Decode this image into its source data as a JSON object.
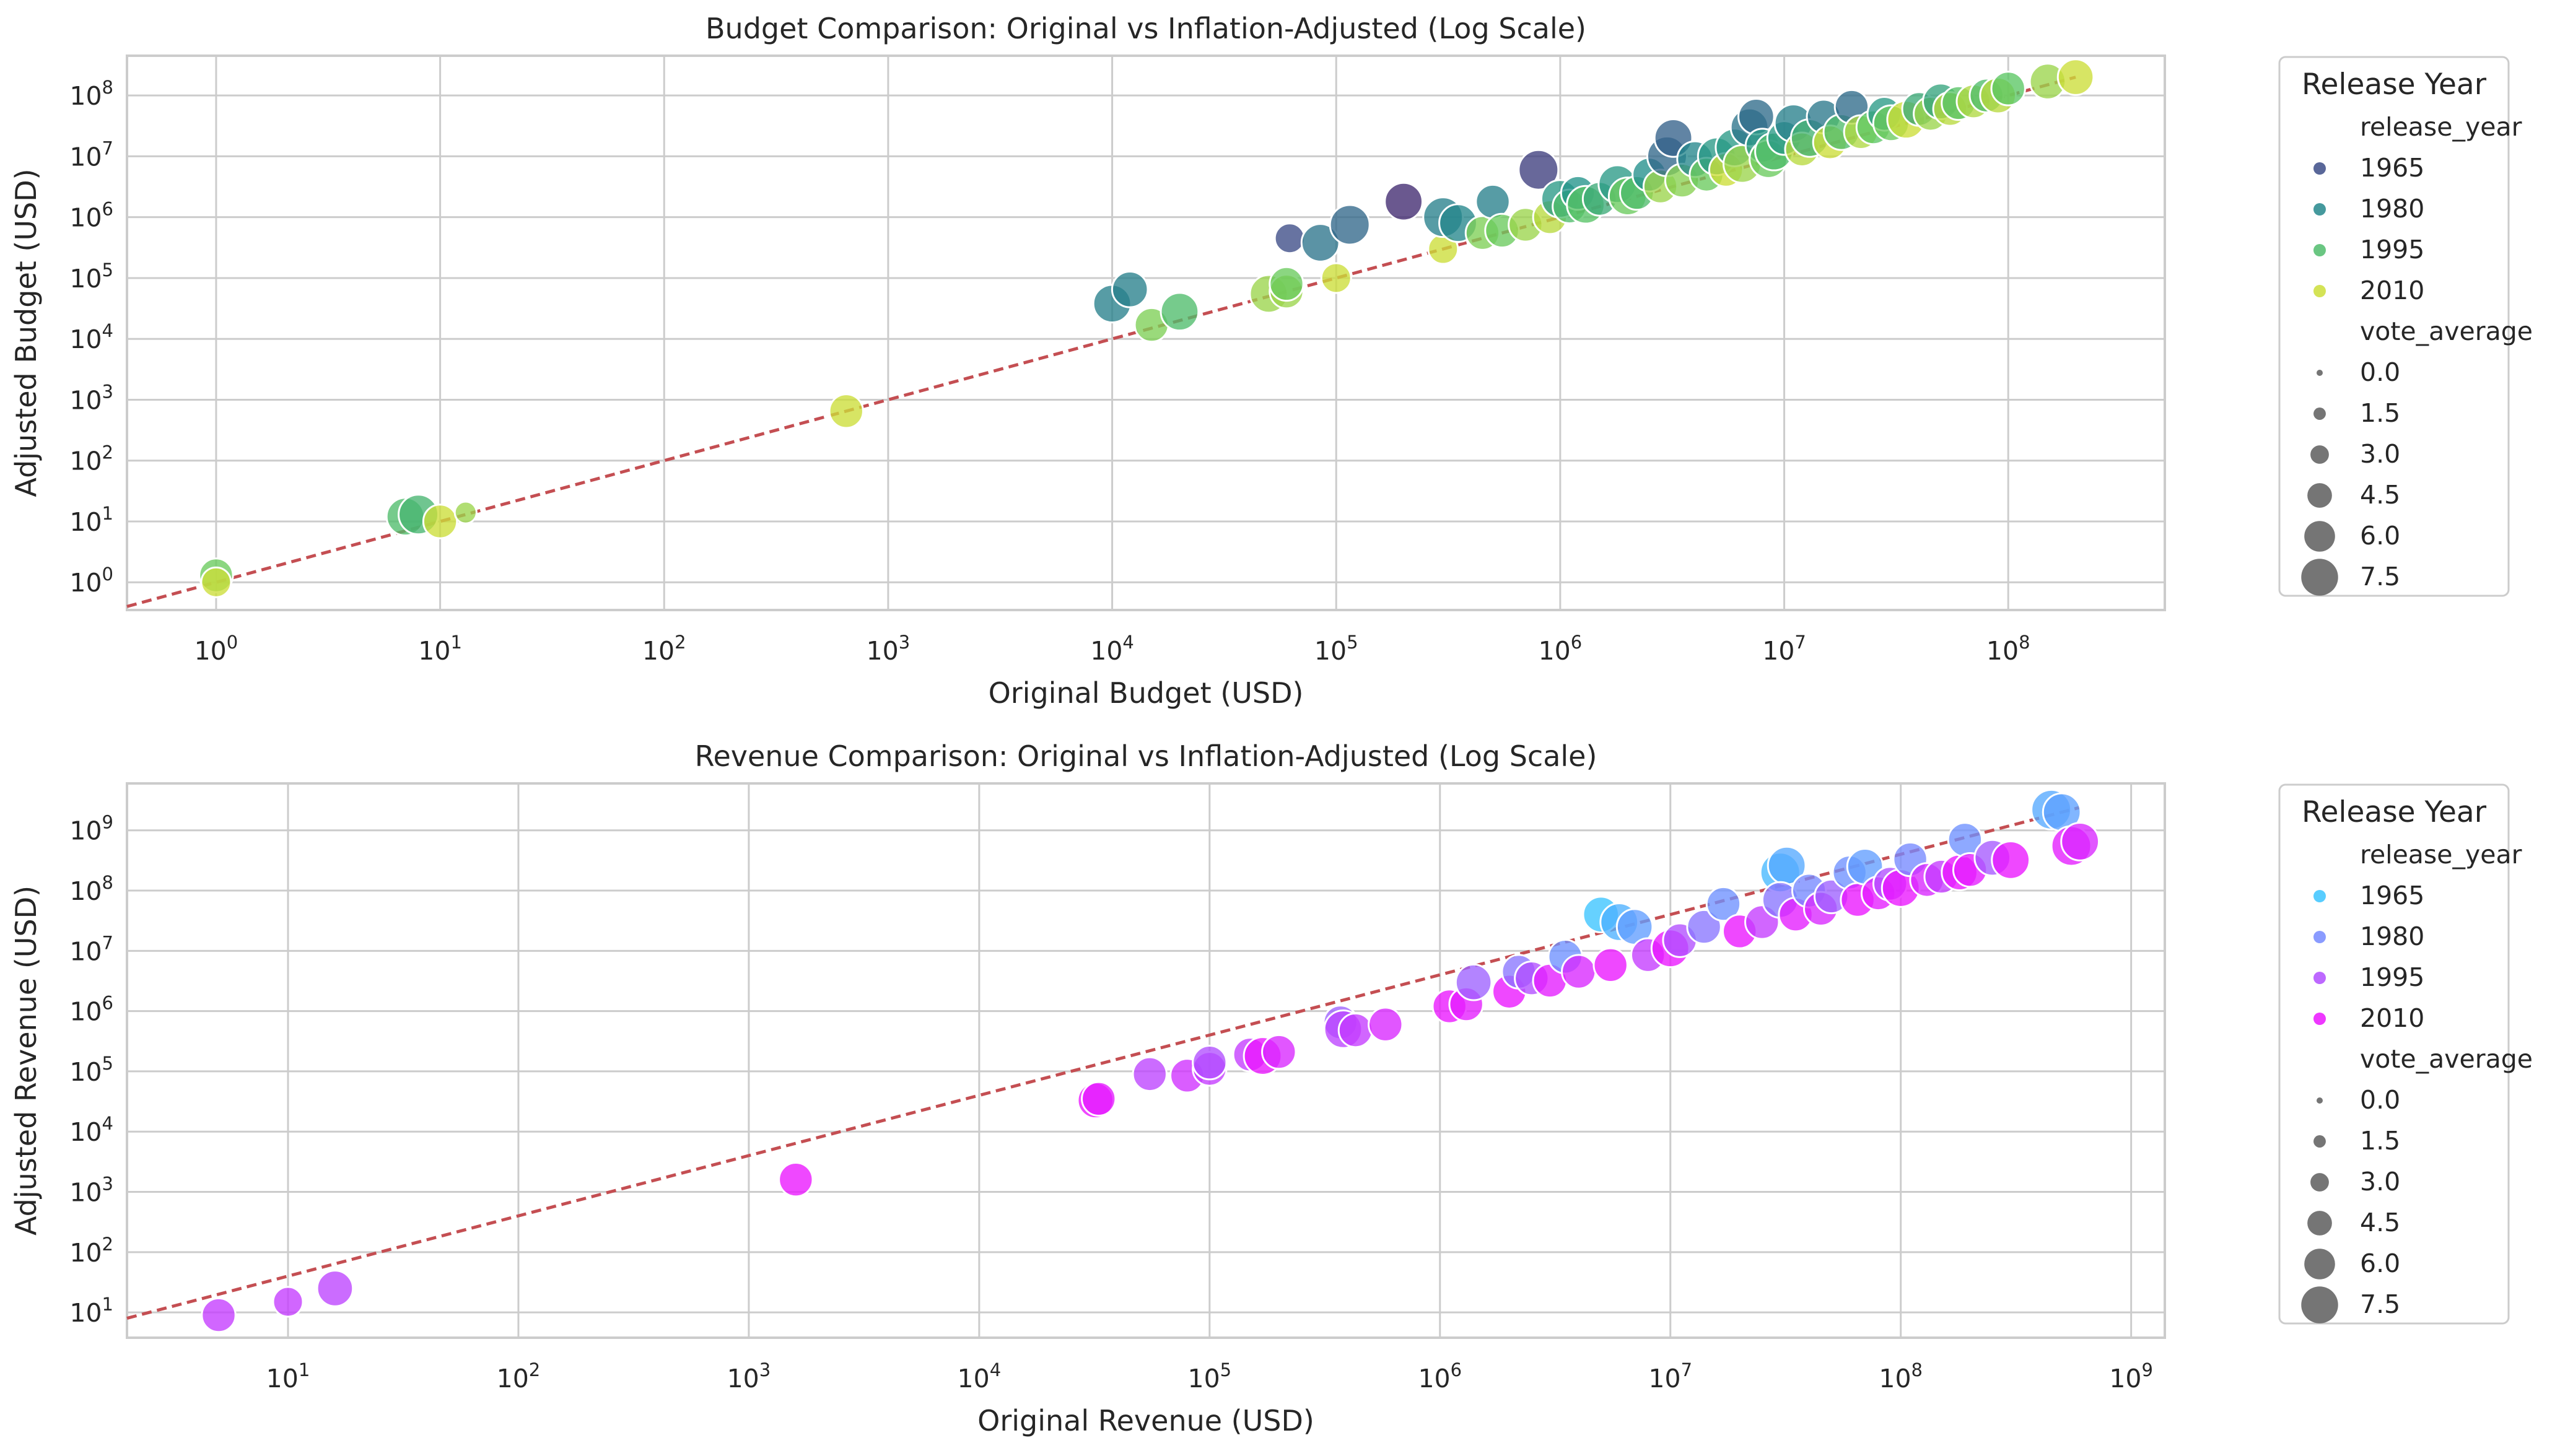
{
  "colors": {
    "top_palette": {
      "1965": "#4a5d8e",
      "1980": "#2b8a8e",
      "1995": "#4ec37a",
      "2010": "#c8df3c"
    },
    "bottom_palette": {
      "1965": "#40d9f0",
      "1980": "#8ea2f0",
      "1995": "#b66df5",
      "2010": "#f71fe8"
    },
    "ref_line": "#c44e52"
  },
  "chart_data": [
    {
      "type": "scatter",
      "title": "Budget Comparison: Original vs Inflation-Adjusted (Log Scale)",
      "xlabel": "Original Budget (USD)",
      "ylabel": "Adjusted Budget (USD)",
      "x_scale": "log",
      "y_scale": "log",
      "xlim": [
        0.4,
        500000000
      ],
      "ylim": [
        0.35,
        450000000
      ],
      "x_ticks": [
        1,
        10,
        100,
        1000,
        10000,
        100000,
        1000000,
        10000000,
        100000000
      ],
      "x_tick_labels": [
        "10^0",
        "10^1",
        "10^2",
        "10^3",
        "10^4",
        "10^5",
        "10^6",
        "10^7",
        "10^8"
      ],
      "y_ticks": [
        1,
        10,
        100,
        1000,
        10000,
        100000,
        1000000,
        10000000,
        100000000
      ],
      "y_tick_labels": [
        "10^0",
        "10^1",
        "10^2",
        "10^3",
        "10^4",
        "10^5",
        "10^6",
        "10^7",
        "10^8"
      ],
      "grid": true,
      "reference_line": {
        "style": "dashed",
        "from": [
          0.4,
          0.4
        ],
        "to": [
          200000000,
          200000000
        ]
      },
      "legend": {
        "placement": "outside-right",
        "title": "Release Year",
        "hue_label": "release_year",
        "hue_entries": [
          "1965",
          "1980",
          "1995",
          "2010"
        ],
        "size_label": "vote_average",
        "size_entries": [
          "0.0",
          "1.5",
          "3.0",
          "4.5",
          "6.0",
          "7.5"
        ]
      },
      "points": [
        {
          "x": 1,
          "y": 1.3,
          "year": 2000,
          "vote": 6
        },
        {
          "x": 1,
          "y": 1,
          "year": 2010,
          "vote": 5
        },
        {
          "x": 7,
          "y": 12,
          "year": 1995,
          "vote": 7
        },
        {
          "x": 8,
          "y": 13,
          "year": 1993,
          "vote": 7.5
        },
        {
          "x": 10,
          "y": 10,
          "year": 2010,
          "vote": 6
        },
        {
          "x": 13,
          "y": 14,
          "year": 2005,
          "vote": 3
        },
        {
          "x": 650,
          "y": 650,
          "year": 2010,
          "vote": 6
        },
        {
          "x": 10000,
          "y": 38000,
          "year": 1978,
          "vote": 7
        },
        {
          "x": 12000,
          "y": 65000,
          "year": 1978,
          "vote": 6.5
        },
        {
          "x": 15000,
          "y": 17000,
          "year": 2002,
          "vote": 6
        },
        {
          "x": 20000,
          "y": 28000,
          "year": 1995,
          "vote": 7
        },
        {
          "x": 50000,
          "y": 55000,
          "year": 2005,
          "vote": 7
        },
        {
          "x": 60000,
          "y": 60000,
          "year": 2005,
          "vote": 6
        },
        {
          "x": 60000,
          "y": 80000,
          "year": 2000,
          "vote": 6
        },
        {
          "x": 62000,
          "y": 450000,
          "year": 1965,
          "vote": 5
        },
        {
          "x": 85000,
          "y": 380000,
          "year": 1975,
          "vote": 7
        },
        {
          "x": 100000,
          "y": 100000,
          "year": 2010,
          "vote": 5
        },
        {
          "x": 115000,
          "y": 750000,
          "year": 1972,
          "vote": 7.5
        },
        {
          "x": 200000,
          "y": 1800000,
          "year": 1958,
          "vote": 7
        },
        {
          "x": 300000,
          "y": 300000,
          "year": 2010,
          "vote": 5
        },
        {
          "x": 300000,
          "y": 1000000,
          "year": 1978,
          "vote": 7.5
        },
        {
          "x": 350000,
          "y": 800000,
          "year": 1980,
          "vote": 7
        },
        {
          "x": 450000,
          "y": 550000,
          "year": 2002,
          "vote": 6
        },
        {
          "x": 500000,
          "y": 1800000,
          "year": 1978,
          "vote": 6
        },
        {
          "x": 550000,
          "y": 600000,
          "year": 2000,
          "vote": 6
        },
        {
          "x": 700000,
          "y": 750000,
          "year": 2005,
          "vote": 6
        },
        {
          "x": 800000,
          "y": 6000000,
          "year": 1962,
          "vote": 7.5
        },
        {
          "x": 900000,
          "y": 1000000,
          "year": 2008,
          "vote": 6
        },
        {
          "x": 1000000,
          "y": 2000000,
          "year": 1985,
          "vote": 7
        },
        {
          "x": 1100000,
          "y": 1500000,
          "year": 1995,
          "vote": 6
        },
        {
          "x": 1200000,
          "y": 2500000,
          "year": 1983,
          "vote": 6
        },
        {
          "x": 1300000,
          "y": 1600000,
          "year": 1997,
          "vote": 7
        },
        {
          "x": 1500000,
          "y": 2000000,
          "year": 1990,
          "vote": 6
        },
        {
          "x": 1800000,
          "y": 3500000,
          "year": 1985,
          "vote": 7
        },
        {
          "x": 2000000,
          "y": 2200000,
          "year": 2000,
          "vote": 7
        },
        {
          "x": 2200000,
          "y": 2500000,
          "year": 1995,
          "vote": 6
        },
        {
          "x": 2500000,
          "y": 5000000,
          "year": 1982,
          "vote": 6
        },
        {
          "x": 2800000,
          "y": 3200000,
          "year": 2005,
          "vote": 6
        },
        {
          "x": 3000000,
          "y": 10000000,
          "year": 1972,
          "vote": 7.5
        },
        {
          "x": 3200000,
          "y": 20000000,
          "year": 1970,
          "vote": 7
        },
        {
          "x": 3500000,
          "y": 4000000,
          "year": 2003,
          "vote": 6
        },
        {
          "x": 4000000,
          "y": 9000000,
          "year": 1980,
          "vote": 6.5
        },
        {
          "x": 4500000,
          "y": 5000000,
          "year": 2000,
          "vote": 6
        },
        {
          "x": 5000000,
          "y": 10000000,
          "year": 1985,
          "vote": 7
        },
        {
          "x": 5500000,
          "y": 6000000,
          "year": 2010,
          "vote": 6
        },
        {
          "x": 6000000,
          "y": 14000000,
          "year": 1985,
          "vote": 7
        },
        {
          "x": 6500000,
          "y": 7500000,
          "year": 2005,
          "vote": 7
        },
        {
          "x": 7000000,
          "y": 30000000,
          "year": 1975,
          "vote": 7
        },
        {
          "x": 7500000,
          "y": 45000000,
          "year": 1973,
          "vote": 6.5
        },
        {
          "x": 8000000,
          "y": 15000000,
          "year": 1985,
          "vote": 6
        },
        {
          "x": 8500000,
          "y": 9000000,
          "year": 2000,
          "vote": 7
        },
        {
          "x": 9000000,
          "y": 12000000,
          "year": 1995,
          "vote": 7
        },
        {
          "x": 10000000,
          "y": 20000000,
          "year": 1985,
          "vote": 6
        },
        {
          "x": 11000000,
          "y": 35000000,
          "year": 1978,
          "vote": 7
        },
        {
          "x": 12000000,
          "y": 13000000,
          "year": 2008,
          "vote": 6
        },
        {
          "x": 13000000,
          "y": 20000000,
          "year": 1992,
          "vote": 7
        },
        {
          "x": 15000000,
          "y": 45000000,
          "year": 1976,
          "vote": 6
        },
        {
          "x": 16000000,
          "y": 17000000,
          "year": 2010,
          "vote": 6
        },
        {
          "x": 18000000,
          "y": 25000000,
          "year": 1995,
          "vote": 6.5
        },
        {
          "x": 20000000,
          "y": 65000000,
          "year": 1973,
          "vote": 6
        },
        {
          "x": 22000000,
          "y": 25000000,
          "year": 2007,
          "vote": 6
        },
        {
          "x": 25000000,
          "y": 30000000,
          "year": 1998,
          "vote": 6
        },
        {
          "x": 28000000,
          "y": 50000000,
          "year": 1985,
          "vote": 6
        },
        {
          "x": 30000000,
          "y": 35000000,
          "year": 2000,
          "vote": 6.5
        },
        {
          "x": 35000000,
          "y": 40000000,
          "year": 2010,
          "vote": 7
        },
        {
          "x": 40000000,
          "y": 60000000,
          "year": 1990,
          "vote": 6
        },
        {
          "x": 45000000,
          "y": 50000000,
          "year": 2005,
          "vote": 6
        },
        {
          "x": 50000000,
          "y": 80000000,
          "year": 1988,
          "vote": 6.5
        },
        {
          "x": 55000000,
          "y": 60000000,
          "year": 2008,
          "vote": 6
        },
        {
          "x": 60000000,
          "y": 75000000,
          "year": 1997,
          "vote": 6
        },
        {
          "x": 70000000,
          "y": 80000000,
          "year": 2007,
          "vote": 6
        },
        {
          "x": 80000000,
          "y": 100000000,
          "year": 1995,
          "vote": 6
        },
        {
          "x": 90000000,
          "y": 100000000,
          "year": 2008,
          "vote": 6.5
        },
        {
          "x": 100000000,
          "y": 130000000,
          "year": 1998,
          "vote": 6
        },
        {
          "x": 150000000,
          "y": 170000000,
          "year": 2005,
          "vote": 6.5
        },
        {
          "x": 200000000,
          "y": 200000000,
          "year": 2010,
          "vote": 6.5
        }
      ]
    },
    {
      "type": "scatter",
      "title": "Revenue Comparison: Original vs Inflation-Adjusted (Log Scale)",
      "xlabel": "Original Revenue (USD)",
      "ylabel": "Adjusted Revenue (USD)",
      "x_scale": "log",
      "y_scale": "log",
      "xlim": [
        2,
        1400000000
      ],
      "ylim": [
        3.8,
        6000000000
      ],
      "x_ticks": [
        10,
        100,
        1000,
        10000,
        100000,
        1000000,
        10000000,
        100000000,
        1000000000
      ],
      "x_tick_labels": [
        "10^1",
        "10^2",
        "10^3",
        "10^4",
        "10^5",
        "10^6",
        "10^7",
        "10^8",
        "10^9"
      ],
      "y_ticks": [
        10,
        100,
        1000,
        10000,
        100000,
        1000000,
        10000000,
        100000000,
        1000000000
      ],
      "y_tick_labels": [
        "10^1",
        "10^2",
        "10^3",
        "10^4",
        "10^5",
        "10^6",
        "10^7",
        "10^8",
        "10^9"
      ],
      "grid": true,
      "reference_line": {
        "style": "dashed",
        "from": [
          2,
          8
        ],
        "to": [
          600000000,
          2400000000
        ]
      },
      "legend": {
        "placement": "outside-right",
        "title": "Release Year",
        "hue_label": "release_year",
        "hue_entries": [
          "1965",
          "1980",
          "1995",
          "2010"
        ],
        "size_label": "vote_average",
        "size_entries": [
          "0.0",
          "1.5",
          "3.0",
          "4.5",
          "6.0",
          "7.5"
        ]
      },
      "points": [
        {
          "x": 5,
          "y": 9,
          "year": 2000,
          "vote": 6
        },
        {
          "x": 10,
          "y": 15,
          "year": 2000,
          "vote": 5
        },
        {
          "x": 16,
          "y": 25,
          "year": 1998,
          "vote": 6.5
        },
        {
          "x": 1600,
          "y": 1600,
          "year": 2010,
          "vote": 6
        },
        {
          "x": 32000,
          "y": 33000,
          "year": 2010,
          "vote": 6.5
        },
        {
          "x": 33000,
          "y": 35000,
          "year": 2008,
          "vote": 6
        },
        {
          "x": 55000,
          "y": 90000,
          "year": 1998,
          "vote": 6
        },
        {
          "x": 80000,
          "y": 85000,
          "year": 2003,
          "vote": 6
        },
        {
          "x": 100000,
          "y": 110000,
          "year": 2000,
          "vote": 6
        },
        {
          "x": 100000,
          "y": 140000,
          "year": 1995,
          "vote": 6
        },
        {
          "x": 150000,
          "y": 190000,
          "year": 2000,
          "vote": 6
        },
        {
          "x": 170000,
          "y": 180000,
          "year": 2010,
          "vote": 7
        },
        {
          "x": 200000,
          "y": 210000,
          "year": 2005,
          "vote": 6
        },
        {
          "x": 370000,
          "y": 650000,
          "year": 1990,
          "vote": 6
        },
        {
          "x": 380000,
          "y": 500000,
          "year": 1998,
          "vote": 7
        },
        {
          "x": 430000,
          "y": 480000,
          "year": 2000,
          "vote": 6
        },
        {
          "x": 580000,
          "y": 600000,
          "year": 2005,
          "vote": 6
        },
        {
          "x": 1100000,
          "y": 1200000,
          "year": 2010,
          "vote": 6
        },
        {
          "x": 1300000,
          "y": 1300000,
          "year": 2008,
          "vote": 6
        },
        {
          "x": 1400000,
          "y": 3000000,
          "year": 1990,
          "vote": 6.5
        },
        {
          "x": 2000000,
          "y": 2100000,
          "year": 2010,
          "vote": 6
        },
        {
          "x": 2200000,
          "y": 4500000,
          "year": 1985,
          "vote": 6
        },
        {
          "x": 2500000,
          "y": 3500000,
          "year": 1995,
          "vote": 6
        },
        {
          "x": 3000000,
          "y": 3200000,
          "year": 2008,
          "vote": 6
        },
        {
          "x": 3500000,
          "y": 8000000,
          "year": 1978,
          "vote": 6
        },
        {
          "x": 4000000,
          "y": 4500000,
          "year": 2005,
          "vote": 6
        },
        {
          "x": 5000000,
          "y": 40000000,
          "year": 1965,
          "vote": 6.5
        },
        {
          "x": 5500000,
          "y": 5800000,
          "year": 2010,
          "vote": 6
        },
        {
          "x": 6000000,
          "y": 30000000,
          "year": 1970,
          "vote": 7
        },
        {
          "x": 7000000,
          "y": 25000000,
          "year": 1975,
          "vote": 6.5
        },
        {
          "x": 8000000,
          "y": 8500000,
          "year": 2000,
          "vote": 6
        },
        {
          "x": 10000000,
          "y": 11000000,
          "year": 2010,
          "vote": 7
        },
        {
          "x": 11000000,
          "y": 15000000,
          "year": 1995,
          "vote": 6
        },
        {
          "x": 14000000,
          "y": 25000000,
          "year": 1985,
          "vote": 6
        },
        {
          "x": 17000000,
          "y": 60000000,
          "year": 1978,
          "vote": 6
        },
        {
          "x": 20000000,
          "y": 21000000,
          "year": 2010,
          "vote": 6
        },
        {
          "x": 25000000,
          "y": 30000000,
          "year": 2000,
          "vote": 6
        },
        {
          "x": 30000000,
          "y": 200000000,
          "year": 1968,
          "vote": 7.5
        },
        {
          "x": 32000000,
          "y": 260000000,
          "year": 1972,
          "vote": 7
        },
        {
          "x": 30000000,
          "y": 70000000,
          "year": 1985,
          "vote": 6.5
        },
        {
          "x": 35000000,
          "y": 40000000,
          "year": 2008,
          "vote": 6
        },
        {
          "x": 40000000,
          "y": 100000000,
          "year": 1980,
          "vote": 6
        },
        {
          "x": 45000000,
          "y": 50000000,
          "year": 2005,
          "vote": 6
        },
        {
          "x": 50000000,
          "y": 80000000,
          "year": 1990,
          "vote": 6
        },
        {
          "x": 60000000,
          "y": 200000000,
          "year": 1978,
          "vote": 6
        },
        {
          "x": 65000000,
          "y": 70000000,
          "year": 2010,
          "vote": 6
        },
        {
          "x": 70000000,
          "y": 250000000,
          "year": 1975,
          "vote": 6.5
        },
        {
          "x": 80000000,
          "y": 90000000,
          "year": 2008,
          "vote": 6
        },
        {
          "x": 90000000,
          "y": 130000000,
          "year": 1995,
          "vote": 6
        },
        {
          "x": 100000000,
          "y": 110000000,
          "year": 2010,
          "vote": 7
        },
        {
          "x": 110000000,
          "y": 330000000,
          "year": 1980,
          "vote": 6
        },
        {
          "x": 130000000,
          "y": 150000000,
          "year": 2005,
          "vote": 6
        },
        {
          "x": 150000000,
          "y": 170000000,
          "year": 2000,
          "vote": 6
        },
        {
          "x": 180000000,
          "y": 200000000,
          "year": 2010,
          "vote": 6.5
        },
        {
          "x": 190000000,
          "y": 700000000,
          "year": 1978,
          "vote": 6
        },
        {
          "x": 200000000,
          "y": 220000000,
          "year": 2008,
          "vote": 6
        },
        {
          "x": 250000000,
          "y": 350000000,
          "year": 1992,
          "vote": 6.5
        },
        {
          "x": 300000000,
          "y": 320000000,
          "year": 2010,
          "vote": 7
        },
        {
          "x": 450000000,
          "y": 2200000000,
          "year": 1972,
          "vote": 7.5
        },
        {
          "x": 500000000,
          "y": 2000000000,
          "year": 1974,
          "vote": 7
        },
        {
          "x": 550000000,
          "y": 550000000,
          "year": 2008,
          "vote": 7.5
        },
        {
          "x": 600000000,
          "y": 650000000,
          "year": 2005,
          "vote": 7
        }
      ]
    }
  ]
}
